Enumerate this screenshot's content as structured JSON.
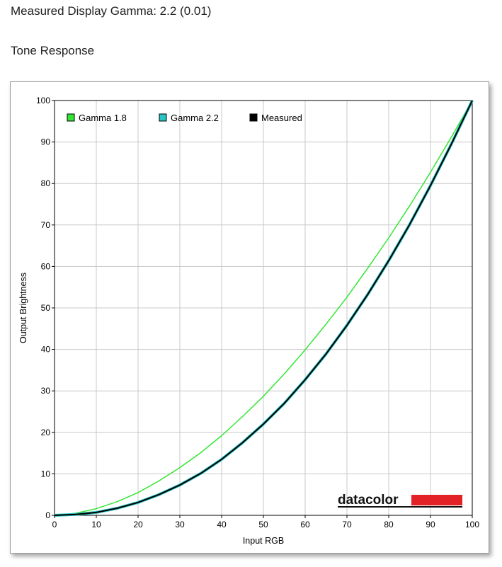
{
  "header": {
    "gamma_text": "Measured Display Gamma: 2.2 (0.01)",
    "section_title": "Tone Response"
  },
  "brand": {
    "text": "datacolor",
    "bar_color": "#e32227"
  },
  "chart_data": {
    "type": "line",
    "title": "",
    "xlabel": "Input RGB",
    "ylabel": "Output Brightness",
    "xlim": [
      0,
      100
    ],
    "ylim": [
      0,
      100
    ],
    "x_ticks": [
      0,
      10,
      20,
      30,
      40,
      50,
      60,
      70,
      80,
      90,
      100
    ],
    "y_ticks": [
      0,
      10,
      20,
      30,
      40,
      50,
      60,
      70,
      80,
      90,
      100
    ],
    "grid": true,
    "legend_position": "top-left",
    "series": [
      {
        "name": "Gamma 1.8",
        "color": "#33e633",
        "x": [
          0,
          5,
          10,
          15,
          20,
          25,
          30,
          35,
          40,
          45,
          50,
          55,
          60,
          65,
          70,
          75,
          80,
          85,
          90,
          95,
          100
        ],
        "y": [
          0,
          0.5,
          1.6,
          3.3,
          5.5,
          8.3,
          11.5,
          15.1,
          19.2,
          23.8,
          28.7,
          34.1,
          39.9,
          46.1,
          52.6,
          59.6,
          66.9,
          74.6,
          82.7,
          91.2,
          100
        ]
      },
      {
        "name": "Gamma 2.2",
        "color": "#29c4c4",
        "x": [
          0,
          5,
          10,
          15,
          20,
          25,
          30,
          35,
          40,
          45,
          50,
          55,
          60,
          65,
          70,
          75,
          80,
          85,
          90,
          95,
          100
        ],
        "y": [
          0,
          0.1,
          0.6,
          1.5,
          2.9,
          4.8,
          7.1,
          9.9,
          13.3,
          17.3,
          21.8,
          26.8,
          32.5,
          38.7,
          45.6,
          53.1,
          61.2,
          69.9,
          79.3,
          89.3,
          100
        ]
      },
      {
        "name": "Measured",
        "color": "#000000",
        "x": [
          0,
          5,
          10,
          15,
          20,
          25,
          30,
          35,
          40,
          45,
          50,
          55,
          60,
          65,
          70,
          75,
          80,
          85,
          90,
          95,
          100
        ],
        "y": [
          0,
          0.2,
          0.7,
          1.7,
          3.1,
          5.0,
          7.3,
          10.1,
          13.5,
          17.5,
          22.0,
          27.0,
          32.7,
          38.9,
          45.8,
          53.3,
          61.4,
          70.1,
          79.5,
          89.5,
          100
        ]
      }
    ]
  }
}
